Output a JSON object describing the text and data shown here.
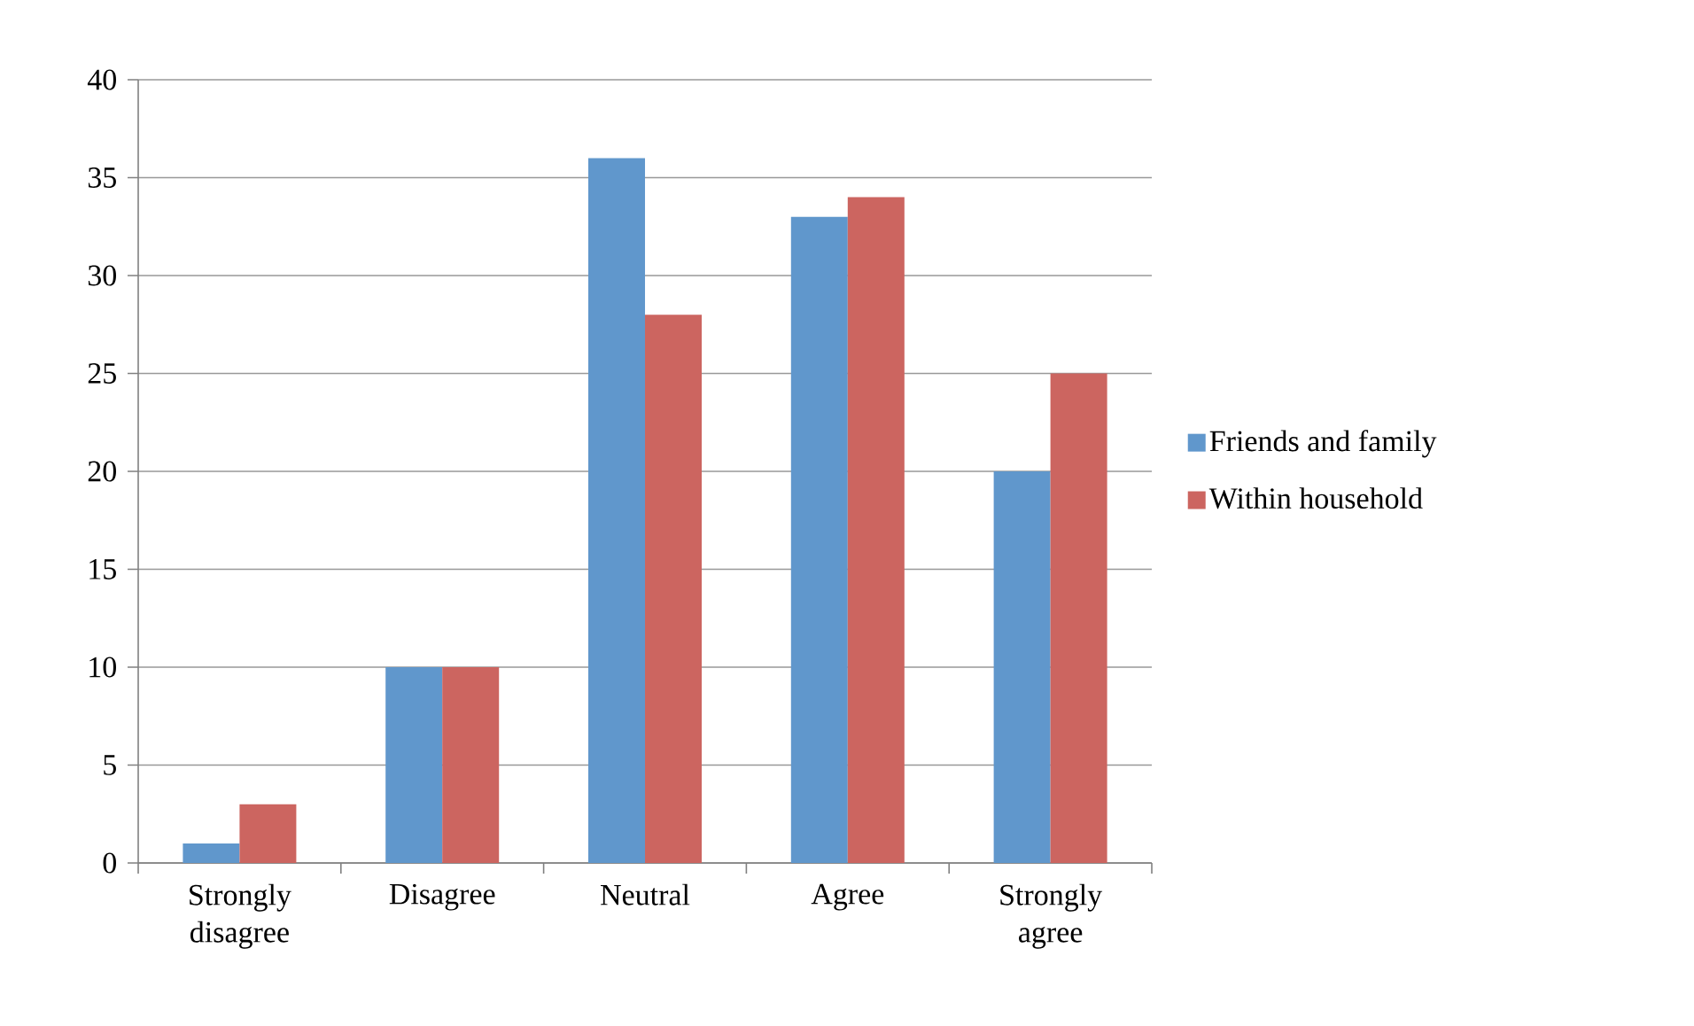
{
  "chart_data": {
    "type": "bar",
    "categories": [
      "Strongly disagree",
      "Disagree",
      "Neutral",
      "Agree",
      "Strongly agree"
    ],
    "series": [
      {
        "name": "Friends and family",
        "color": "#6097cc",
        "values": [
          1,
          10,
          36,
          33,
          20
        ]
      },
      {
        "name": "Within household",
        "color": "#cc6560",
        "values": [
          3,
          10,
          28,
          34,
          25
        ]
      }
    ],
    "ylim": [
      0,
      40
    ],
    "yticks": [
      0,
      5,
      10,
      15,
      20,
      25,
      30,
      35,
      40
    ],
    "grid": "y",
    "legend": "right"
  }
}
